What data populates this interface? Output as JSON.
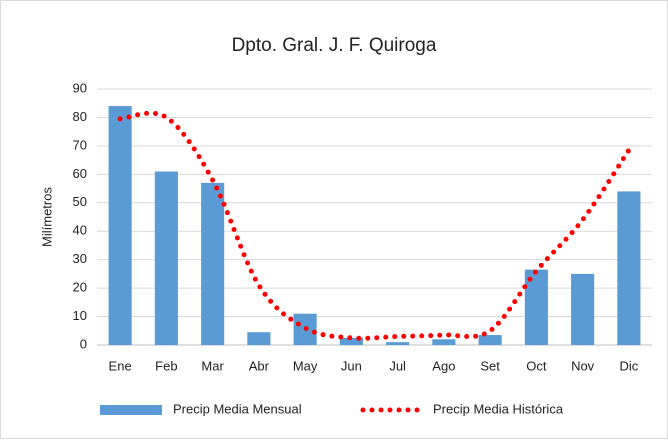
{
  "chart_data": {
    "type": "bar",
    "title": "Dpto. Gral. J. F. Quiroga",
    "y_label": "Milímetros",
    "categories": [
      "Ene",
      "Feb",
      "Mar",
      "Abr",
      "May",
      "Jun",
      "Jul",
      "Ago",
      "Set",
      "Oct",
      "Nov",
      "Dic"
    ],
    "series": [
      {
        "name": "Precip Media Mensual",
        "type": "bar",
        "color": "#5b9bd5",
        "values": [
          84,
          61,
          57,
          4.5,
          11,
          2.5,
          1,
          2,
          3.5,
          26.5,
          25,
          54
        ]
      },
      {
        "name": "Precip Media Histórica",
        "type": "line",
        "line_style": "dotted",
        "smooth": true,
        "color": "#ff0000",
        "values": [
          79.5,
          80,
          58,
          21,
          6,
          2.5,
          3,
          3.5,
          5,
          26,
          44,
          68.5
        ]
      }
    ],
    "ylim": [
      0,
      90
    ],
    "yticks": [
      0,
      10,
      20,
      30,
      40,
      50,
      60,
      70,
      80,
      90
    ],
    "grid": true,
    "legend": "bottom"
  }
}
